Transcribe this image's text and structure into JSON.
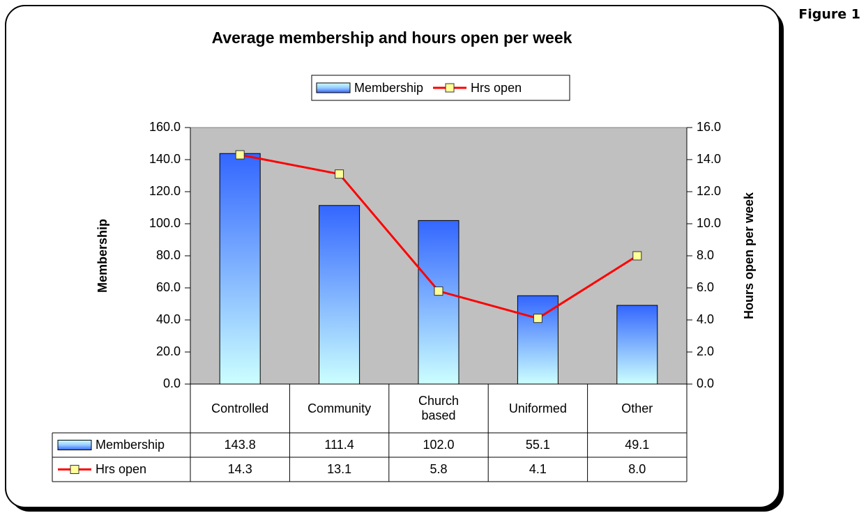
{
  "chart_data": {
    "type": "bar",
    "title": "Average membership and hours open per week",
    "annotation": "Figure 1",
    "categories": [
      "Controlled",
      "Community",
      "Church based",
      "Uniformed",
      "Other"
    ],
    "series": [
      {
        "name": "Membership",
        "type": "bar",
        "color": "#3366ff",
        "values": [
          143.8,
          111.4,
          102.0,
          55.1,
          49.1
        ],
        "value_labels": [
          "143.8",
          "111.4",
          "102.0",
          "55.1",
          "49.1"
        ]
      },
      {
        "name": "Hrs open",
        "type": "line",
        "axis": "y2",
        "color": "#ff0000",
        "marker_color": "#ffff99",
        "values": [
          14.3,
          13.1,
          5.8,
          4.1,
          8.0
        ],
        "value_labels": [
          "14.3",
          "13.1",
          "5.8",
          "4.1",
          "8.0"
        ]
      }
    ],
    "ylabel": "Membership",
    "y2label": "Hours open per week",
    "ylim": [
      0,
      160
    ],
    "yticks": [
      {
        "value": 0,
        "label": "0.0"
      },
      {
        "value": 20,
        "label": "20.0"
      },
      {
        "value": 40,
        "label": "40.0"
      },
      {
        "value": 60,
        "label": "60.0"
      },
      {
        "value": 80,
        "label": "80.0"
      },
      {
        "value": 100,
        "label": "100.0"
      },
      {
        "value": 120,
        "label": "120.0"
      },
      {
        "value": 140,
        "label": "140.0"
      },
      {
        "value": 160,
        "label": "160.0"
      }
    ],
    "y2lim": [
      0,
      16
    ],
    "y2ticks": [
      {
        "value": 0,
        "label": "0.0"
      },
      {
        "value": 2,
        "label": "2.0"
      },
      {
        "value": 4,
        "label": "4.0"
      },
      {
        "value": 6,
        "label": "6.0"
      },
      {
        "value": 8,
        "label": "8.0"
      },
      {
        "value": 10,
        "label": "10.0"
      },
      {
        "value": 12,
        "label": "12.0"
      },
      {
        "value": 14,
        "label": "14.0"
      },
      {
        "value": 16,
        "label": "16.0"
      }
    ],
    "plot_background": "#c0c0c0",
    "legend": "top"
  }
}
